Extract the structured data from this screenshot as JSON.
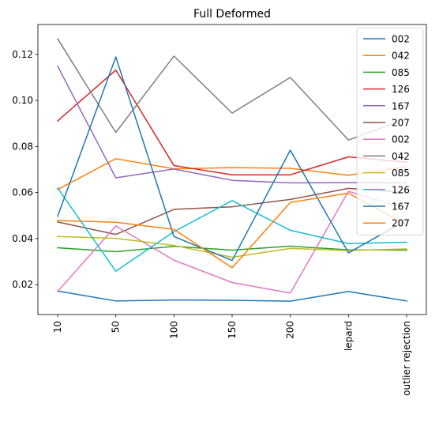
{
  "chart_data": {
    "type": "line",
    "title": "Full Deformed",
    "xlabel": "",
    "ylabel": "",
    "categories": [
      "10",
      "50",
      "100",
      "150",
      "200",
      "lepard",
      "outlier rejection"
    ],
    "ylim": [
      0.007,
      0.133
    ],
    "yticks": [
      0.02,
      0.04,
      0.06,
      0.08,
      0.1,
      0.12
    ],
    "ytick_labels": [
      "0.02",
      "0.04",
      "0.06",
      "0.08",
      "0.10",
      "0.12"
    ],
    "grid": false,
    "legend_position": "top-right",
    "series": [
      {
        "name": "002",
        "color": "#1f77b4",
        "values": [
          0.0172,
          0.0129,
          0.0133,
          0.0132,
          0.0128,
          0.017,
          0.0129
        ]
      },
      {
        "name": "042",
        "color": "#ff7f0e",
        "values": [
          0.0613,
          0.0747,
          0.0703,
          0.0708,
          0.0705,
          0.0675,
          0.0712
        ]
      },
      {
        "name": "085",
        "color": "#2ca02c",
        "values": [
          0.036,
          0.0343,
          0.0366,
          0.035,
          0.0367,
          0.0351,
          0.035
        ]
      },
      {
        "name": "126",
        "color": "#d62728",
        "values": [
          0.0911,
          0.1132,
          0.0717,
          0.0677,
          0.0677,
          0.0755,
          0.0732
        ]
      },
      {
        "name": "167",
        "color": "#9467bd",
        "values": [
          0.1149,
          0.0664,
          0.0702,
          0.0653,
          0.0642,
          0.0643,
          0.0642
        ]
      },
      {
        "name": "207",
        "color": "#8c564b",
        "values": [
          0.0472,
          0.0418,
          0.0527,
          0.0538,
          0.057,
          0.0618,
          0.06
        ]
      },
      {
        "name": "002",
        "color": "#e377c2",
        "values": [
          0.017,
          0.0455,
          0.0306,
          0.0209,
          0.0163,
          0.0605,
          0.053
        ]
      },
      {
        "name": "042",
        "color": "#7f7f7f",
        "values": [
          0.1268,
          0.0861,
          0.1193,
          0.0945,
          0.11,
          0.0828,
          0.092
        ]
      },
      {
        "name": "085",
        "color": "#bcbd22",
        "values": [
          0.0409,
          0.0401,
          0.037,
          0.0319,
          0.0357,
          0.0348,
          0.0355
        ]
      },
      {
        "name": "126",
        "color": "#17becf",
        "values": [
          0.062,
          0.0258,
          0.043,
          0.0565,
          0.0436,
          0.0378,
          0.0384
        ]
      },
      {
        "name": "167",
        "color": "#1f77b4",
        "values": [
          0.0497,
          0.1189,
          0.0409,
          0.0305,
          0.0784,
          0.0338,
          0.048
        ]
      },
      {
        "name": "207",
        "color": "#ff7f0e",
        "values": [
          0.0478,
          0.0471,
          0.044,
          0.0273,
          0.0557,
          0.0597,
          0.046
        ]
      }
    ]
  }
}
